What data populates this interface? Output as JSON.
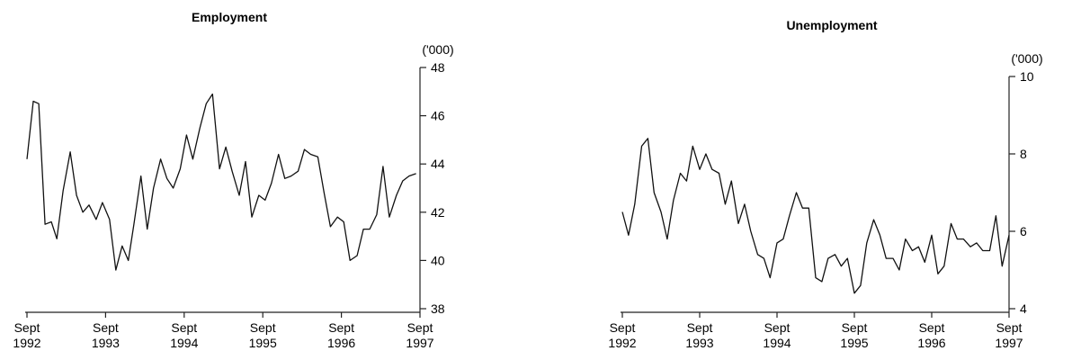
{
  "chart_data": [
    {
      "type": "line",
      "title": "Employment",
      "ylabel": "('000)",
      "ylim": [
        38,
        48
      ],
      "yticks": [
        38,
        40,
        42,
        44,
        46,
        48
      ],
      "xlim": [
        1992.67,
        1997.67
      ],
      "xticks": [
        {
          "x": 1992.67,
          "line1": "Sept",
          "line2": "1992"
        },
        {
          "x": 1993.67,
          "line1": "Sept",
          "line2": "1993"
        },
        {
          "x": 1994.67,
          "line1": "Sept",
          "line2": "1994"
        },
        {
          "x": 1995.67,
          "line1": "Sept",
          "line2": "1995"
        },
        {
          "x": 1996.67,
          "line1": "Sept",
          "line2": "1996"
        },
        {
          "x": 1997.67,
          "line1": "Sept",
          "line2": "1997"
        }
      ],
      "grid": false,
      "y_axis_side": "right",
      "series": [
        {
          "x": [
            1992.67,
            1992.75,
            1992.82,
            1992.9,
            1992.98,
            1993.05,
            1993.13,
            1993.22,
            1993.3,
            1993.38,
            1993.46,
            1993.55,
            1993.63,
            1993.72,
            1993.8,
            1993.88,
            1993.96,
            1994.03,
            1994.12,
            1994.2,
            1994.28,
            1994.37,
            1994.45,
            1994.53,
            1994.62,
            1994.7,
            1994.78,
            1994.87,
            1994.95,
            1995.03,
            1995.12,
            1995.2,
            1995.28,
            1995.37,
            1995.45,
            1995.53,
            1995.62,
            1995.7,
            1995.78,
            1995.87,
            1995.95,
            1996.03,
            1996.12,
            1996.2,
            1996.28,
            1996.37,
            1996.45,
            1996.53,
            1996.62,
            1996.7,
            1996.78,
            1996.87,
            1996.95,
            1997.03,
            1997.12,
            1997.2,
            1997.28,
            1997.37,
            1997.45,
            1997.53,
            1997.62
          ],
          "y": [
            44.2,
            46.6,
            46.5,
            41.5,
            41.6,
            40.9,
            42.9,
            44.5,
            42.7,
            42.0,
            42.3,
            41.7,
            42.4,
            41.7,
            39.6,
            40.6,
            40.0,
            41.5,
            43.5,
            41.3,
            43.0,
            44.2,
            43.4,
            43.0,
            43.8,
            45.2,
            44.2,
            45.5,
            46.5,
            46.9,
            43.8,
            44.7,
            43.7,
            42.7,
            44.1,
            41.8,
            42.7,
            42.5,
            43.2,
            44.4,
            43.4,
            43.5,
            43.7,
            44.6,
            44.4,
            44.3,
            42.8,
            41.4,
            41.8,
            41.6,
            40.0,
            40.2,
            41.3,
            41.3,
            41.9,
            43.9,
            41.8,
            42.7,
            43.3,
            43.5,
            43.6
          ]
        }
      ]
    },
    {
      "type": "line",
      "title": "Unemployment",
      "ylabel": "('000)",
      "ylim": [
        4,
        10
      ],
      "yticks": [
        4,
        6,
        8,
        10
      ],
      "xlim": [
        1992.67,
        1997.67
      ],
      "xticks": [
        {
          "x": 1992.67,
          "line1": "Sept",
          "line2": "1992"
        },
        {
          "x": 1993.67,
          "line1": "Sept",
          "line2": "1993"
        },
        {
          "x": 1994.67,
          "line1": "Sept",
          "line2": "1994"
        },
        {
          "x": 1995.67,
          "line1": "Sept",
          "line2": "1995"
        },
        {
          "x": 1996.67,
          "line1": "Sept",
          "line2": "1996"
        },
        {
          "x": 1997.67,
          "line1": "Sept",
          "line2": "1997"
        }
      ],
      "grid": false,
      "y_axis_side": "right",
      "series": [
        {
          "x": [
            1992.67,
            1992.75,
            1992.83,
            1992.92,
            1993.0,
            1993.08,
            1993.17,
            1993.25,
            1993.33,
            1993.42,
            1993.5,
            1993.58,
            1993.67,
            1993.75,
            1993.83,
            1993.92,
            1994.0,
            1994.08,
            1994.17,
            1994.25,
            1994.33,
            1994.42,
            1994.5,
            1994.58,
            1994.67,
            1994.75,
            1994.83,
            1994.92,
            1995.0,
            1995.08,
            1995.17,
            1995.25,
            1995.33,
            1995.42,
            1995.5,
            1995.58,
            1995.67,
            1995.75,
            1995.83,
            1995.92,
            1996.0,
            1996.08,
            1996.17,
            1996.25,
            1996.33,
            1996.42,
            1996.5,
            1996.58,
            1996.67,
            1996.75,
            1996.83,
            1996.92,
            1997.0,
            1997.08,
            1997.17,
            1997.25,
            1997.33,
            1997.42,
            1997.5,
            1997.58,
            1997.67
          ],
          "y": [
            6.5,
            5.9,
            6.7,
            8.2,
            8.4,
            7.0,
            6.5,
            5.8,
            6.8,
            7.5,
            7.3,
            8.2,
            7.6,
            8.0,
            7.6,
            7.5,
            6.7,
            7.3,
            6.2,
            6.7,
            6.0,
            5.4,
            5.3,
            4.8,
            5.7,
            5.8,
            6.4,
            7.0,
            6.6,
            6.6,
            4.8,
            4.7,
            5.3,
            5.4,
            5.1,
            5.3,
            4.4,
            4.6,
            5.7,
            6.3,
            5.9,
            5.3,
            5.3,
            5.0,
            5.8,
            5.5,
            5.6,
            5.2,
            5.9,
            4.9,
            5.1,
            6.2,
            5.8,
            5.8,
            5.6,
            5.7,
            5.5,
            5.5,
            6.4,
            5.1,
            5.9
          ]
        }
      ]
    }
  ]
}
